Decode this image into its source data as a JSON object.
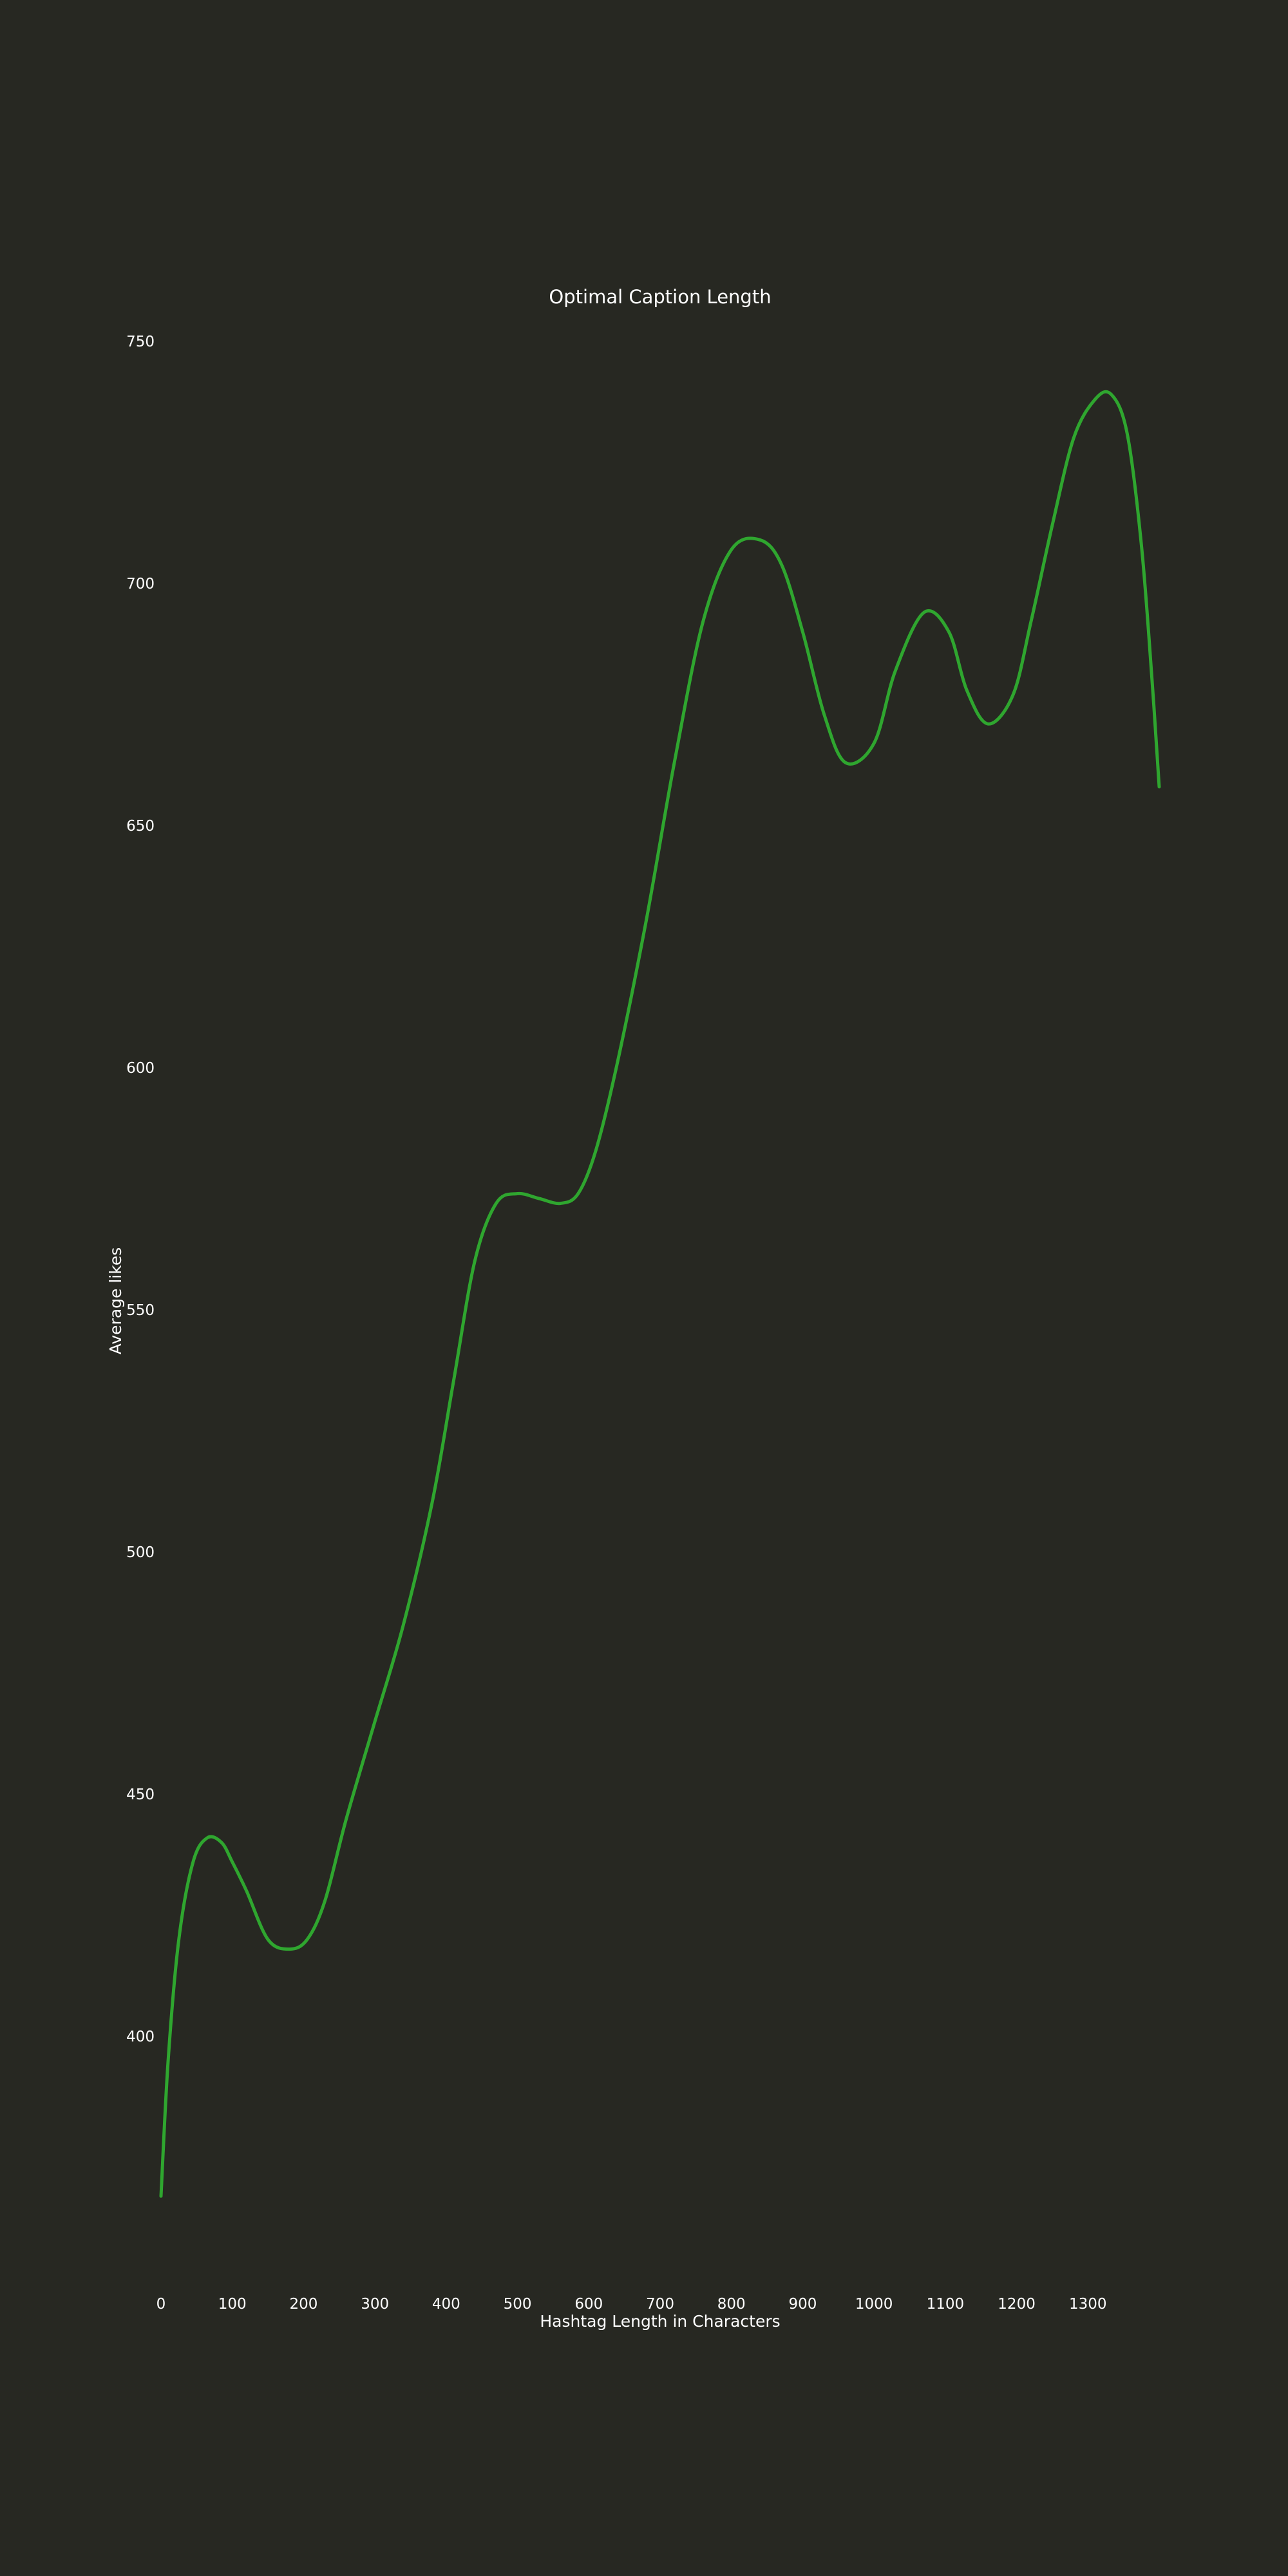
{
  "colors": {
    "background": "#272822",
    "text": "#ffffff",
    "series": "#2fa62f"
  },
  "chart_data": {
    "type": "line",
    "title": "Optimal Caption Length",
    "xlabel": "Hashtag Length in Characters",
    "ylabel": "Average likes",
    "xlim": [
      0,
      1400
    ],
    "ylim": [
      350,
      750
    ],
    "grid": false,
    "legend": "none",
    "x_ticks": [
      0,
      100,
      200,
      300,
      400,
      500,
      600,
      700,
      800,
      900,
      1000,
      1100,
      1200,
      1300
    ],
    "y_ticks": [
      400,
      450,
      500,
      550,
      600,
      650,
      700,
      750
    ],
    "series": [
      {
        "x": [
          0,
          10,
          25,
          45,
          65,
          85,
          100,
          120,
          150,
          180,
          205,
          230,
          260,
          300,
          340,
          380,
          410,
          440,
          470,
          500,
          530,
          560,
          585,
          610,
          640,
          680,
          720,
          760,
          800,
          840,
          870,
          900,
          930,
          960,
          1000,
          1030,
          1070,
          1105,
          1130,
          1160,
          1195,
          1220,
          1250,
          1280,
          1310,
          1333,
          1355,
          1375,
          1390,
          1400
        ],
        "y": [
          367,
          395,
          420,
          436,
          441,
          440,
          436,
          430,
          420,
          418,
          420,
          428,
          445,
          465,
          485,
          510,
          535,
          560,
          572,
          574,
          573,
          572,
          574,
          583,
          601,
          630,
          663,
          692,
          707,
          709,
          704,
          690,
          673,
          663,
          667,
          682,
          694,
          690,
          678,
          671,
          677,
          692,
          712,
          730,
          738,
          739,
          731,
          708,
          680,
          658
        ]
      }
    ]
  }
}
